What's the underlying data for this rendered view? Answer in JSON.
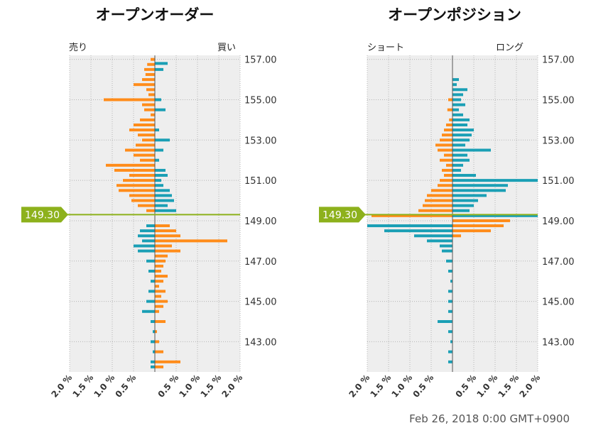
{
  "chart_data": [
    {
      "type": "bar",
      "orientation": "horizontal",
      "title": "オープンオーダー",
      "left_label": "売り",
      "right_label": "買い",
      "y_ticks": [
        "157.00",
        "155.00",
        "153.00",
        "151.00",
        "149.00",
        "147.00",
        "145.00",
        "143.00"
      ],
      "x_ticks": [
        "2.0 %",
        "1.5 %",
        "1.0 %",
        "0.5 %",
        "",
        "0.5 %",
        "1.0 %",
        "1.5 %",
        "2.0 %"
      ],
      "xlim": [
        -2.0,
        2.0
      ],
      "ylim": [
        141.5,
        157.2
      ],
      "current_price": "149.30",
      "grid": true,
      "series": [
        {
          "name": "売り",
          "color": "#ff8c1a",
          "price": [
            157.0,
            156.75,
            156.5,
            156.25,
            156.0,
            155.75,
            155.5,
            155.25,
            155.0,
            154.75,
            154.5,
            154.25,
            154.0,
            153.75,
            153.5,
            153.25,
            153.0,
            152.75,
            152.5,
            152.25,
            152.0,
            151.75,
            151.5,
            151.25,
            151.0,
            150.75,
            150.5,
            150.25,
            150.0,
            149.75,
            149.5,
            148.75,
            148.5,
            148.25,
            148.0,
            147.75,
            147.5,
            147.25,
            147.0,
            146.75,
            146.5,
            146.25,
            146.0,
            145.75,
            145.5,
            145.25,
            145.0,
            144.75,
            144.5,
            144.0,
            143.5,
            143.0,
            142.5,
            142.0,
            141.75
          ],
          "value": [
            -0.1,
            -0.18,
            -0.25,
            -0.22,
            -0.3,
            -0.5,
            -0.2,
            -0.15,
            -1.2,
            -0.3,
            -0.25,
            -0.1,
            -0.35,
            -0.5,
            -0.6,
            -0.4,
            -0.3,
            -0.45,
            -0.7,
            -0.5,
            -0.35,
            -1.15,
            -0.95,
            -0.6,
            -0.75,
            -0.9,
            -0.85,
            -0.6,
            -0.55,
            -0.4,
            -0.2,
            0.35,
            0.5,
            0.6,
            1.7,
            0.4,
            0.6,
            0.3,
            0.25,
            0.2,
            0.15,
            0.3,
            0.2,
            0.1,
            0.25,
            0.15,
            0.3,
            0.2,
            0.1,
            0.25,
            0.05,
            0.1,
            0.2,
            0.6,
            0.2
          ]
        },
        {
          "name": "買い",
          "color": "#1a9fb5",
          "price": [
            156.8,
            156.5,
            155.0,
            154.5,
            153.5,
            153.0,
            152.5,
            152.0,
            151.5,
            151.25,
            151.0,
            150.75,
            150.5,
            150.25,
            150.0,
            149.75,
            149.5,
            148.75,
            148.5,
            148.25,
            148.0,
            147.75,
            147.5,
            147.0,
            146.5,
            146.0,
            145.5,
            145.0,
            144.5,
            144.0,
            143.5,
            143.0,
            142.5,
            142.0,
            141.75
          ],
          "value": [
            0.3,
            0.2,
            0.15,
            0.25,
            0.1,
            0.35,
            0.2,
            0.1,
            0.25,
            0.3,
            0.15,
            0.2,
            0.35,
            0.4,
            0.45,
            0.3,
            0.5,
            -0.2,
            -0.35,
            -0.4,
            -0.3,
            -0.5,
            -0.4,
            -0.2,
            -0.15,
            -0.1,
            -0.15,
            -0.2,
            -0.3,
            -0.1,
            -0.05,
            -0.1,
            -0.05,
            -0.1,
            -0.1
          ]
        }
      ]
    },
    {
      "type": "bar",
      "orientation": "horizontal",
      "title": "オープンポジション",
      "left_label": "ショート",
      "right_label": "ロング",
      "y_ticks": [
        "157.00",
        "155.00",
        "153.00",
        "151.00",
        "149.00",
        "147.00",
        "145.00",
        "143.00"
      ],
      "x_ticks": [
        "2.0 %",
        "1.5 %",
        "1.0 %",
        "0.5 %",
        "",
        "0.5 %",
        "1.0 %",
        "1.5 %",
        "2.0 %"
      ],
      "xlim": [
        -2.0,
        2.0
      ],
      "ylim": [
        141.5,
        157.2
      ],
      "current_price": "149.30",
      "grid": true,
      "series": [
        {
          "name": "ショート",
          "color": "#ff8c1a",
          "price": [
            155.0,
            154.5,
            154.0,
            153.75,
            153.5,
            153.25,
            153.0,
            152.75,
            152.5,
            152.25,
            152.0,
            151.75,
            151.5,
            151.25,
            151.0,
            150.75,
            150.5,
            150.25,
            150.0,
            149.75,
            149.5,
            149.25,
            149.0,
            148.75,
            148.5,
            148.25
          ],
          "value": [
            -0.1,
            -0.12,
            -0.08,
            -0.15,
            -0.2,
            -0.25,
            -0.3,
            -0.4,
            -0.35,
            -0.2,
            -0.3,
            -0.15,
            -0.25,
            -0.2,
            -0.3,
            -0.35,
            -0.5,
            -0.6,
            -0.65,
            -0.7,
            -0.8,
            -1.9,
            1.35,
            1.2,
            0.9,
            0.2
          ]
        },
        {
          "name": "ロング",
          "color": "#1a9fb5",
          "price": [
            156.0,
            155.75,
            155.5,
            155.25,
            155.0,
            154.75,
            154.5,
            154.25,
            154.0,
            153.75,
            153.5,
            153.25,
            153.0,
            152.75,
            152.5,
            152.25,
            152.0,
            151.75,
            151.5,
            151.25,
            151.0,
            150.75,
            150.5,
            150.25,
            150.0,
            149.75,
            149.5,
            149.25,
            148.75,
            148.5,
            148.25,
            148.0,
            147.75,
            147.5,
            147.0,
            146.5,
            146.0,
            145.5,
            145.0,
            144.5,
            144.0,
            143.5,
            143.0,
            142.5,
            142.0
          ],
          "value": [
            0.15,
            0.1,
            0.35,
            0.25,
            0.2,
            0.3,
            0.15,
            0.25,
            0.4,
            0.35,
            0.5,
            0.45,
            0.4,
            0.3,
            0.9,
            0.35,
            0.4,
            0.25,
            0.2,
            0.55,
            2.0,
            1.3,
            1.25,
            0.8,
            0.6,
            0.5,
            0.4,
            2.0,
            -2.0,
            -1.6,
            -0.9,
            -0.6,
            -0.3,
            -0.25,
            -0.15,
            -0.1,
            -0.05,
            -0.1,
            -0.1,
            -0.1,
            -0.35,
            -0.1,
            -0.05,
            -0.1,
            -0.1
          ]
        }
      ]
    }
  ],
  "footer": "Feb 26, 2018 0:00 GMT+0900"
}
